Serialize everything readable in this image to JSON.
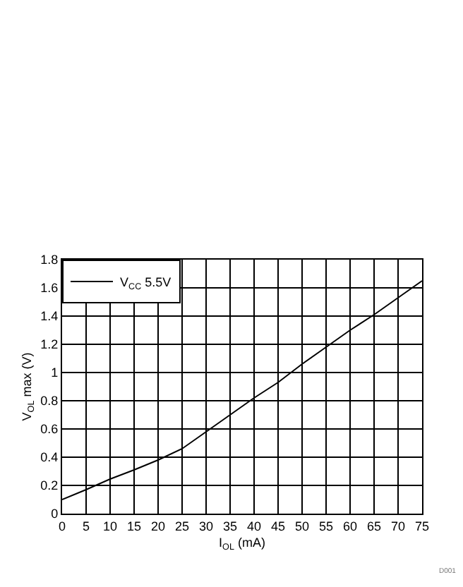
{
  "chart_data": {
    "type": "line",
    "xlabel": "I$_{OL}$ (mA)",
    "ylabel": "V$_{OL}$ max (V)",
    "x": [
      0,
      5,
      10,
      15,
      20,
      25,
      30,
      35,
      40,
      45,
      50,
      55,
      60,
      65,
      70,
      75
    ],
    "series": [
      {
        "name": "V$_{CC}$ 5.5V",
        "color": "#000000",
        "values": [
          0.1,
          0.17,
          0.245,
          0.31,
          0.38,
          0.46,
          0.58,
          0.7,
          0.82,
          0.93,
          1.06,
          1.18,
          1.3,
          1.41,
          1.53,
          1.65
        ]
      }
    ],
    "xlim": [
      0,
      75
    ],
    "xticks": [
      0,
      5,
      10,
      15,
      20,
      25,
      30,
      35,
      40,
      45,
      50,
      55,
      60,
      65,
      70,
      75
    ],
    "ylim": [
      0,
      1.8
    ],
    "yticks": [
      0,
      0.2,
      0.4,
      0.6,
      0.8,
      1,
      1.2,
      1.4,
      1.6,
      1.8
    ],
    "grid": true,
    "legend": "top left",
    "marker": "none",
    "line_style": "solid",
    "annotations": [
      "D001"
    ]
  }
}
